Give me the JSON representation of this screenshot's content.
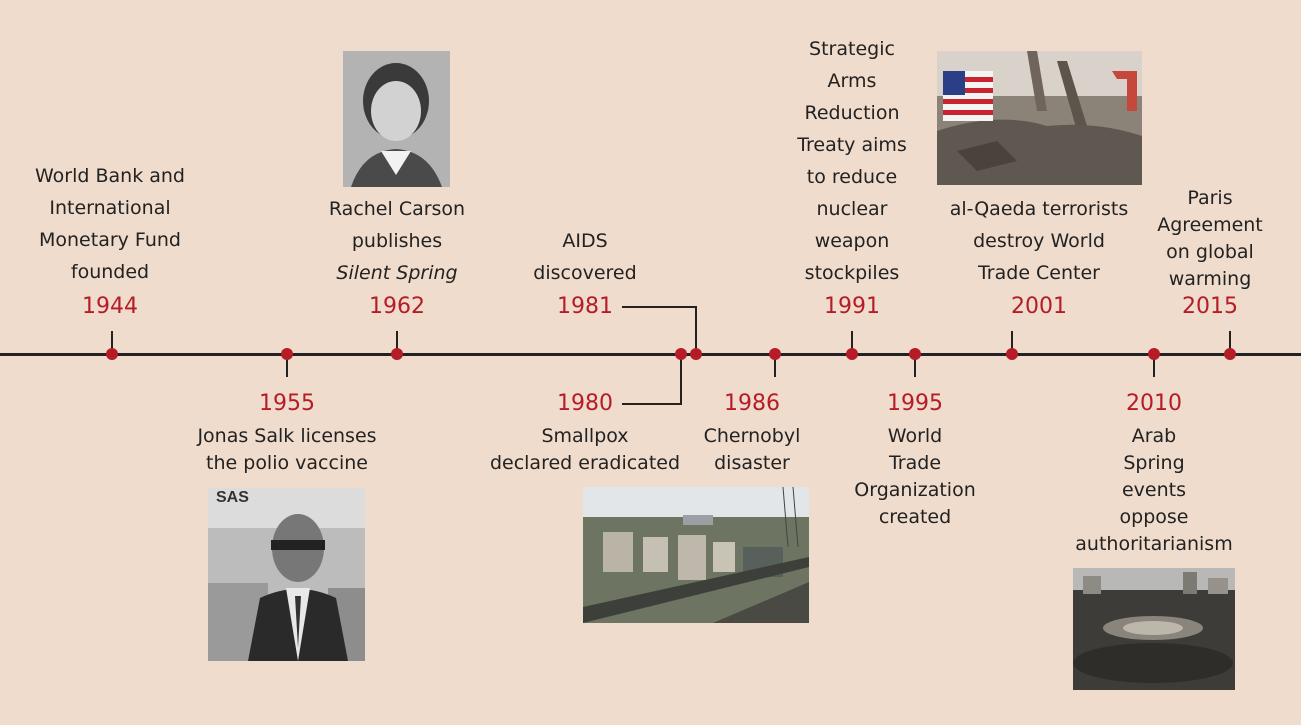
{
  "events": [
    {
      "year": "1944",
      "lines": [
        "World Bank and",
        "International",
        "Monetary Fund",
        "founded"
      ]
    },
    {
      "year": "1955",
      "lines": [
        "Jonas Salk licenses",
        "the polio vaccine"
      ]
    },
    {
      "year": "1962",
      "lines": [
        "Rachel Carson",
        "publishes",
        "Silent Spring"
      ]
    },
    {
      "year": "1980",
      "lines": [
        "Smallpox",
        "declared eradicated"
      ]
    },
    {
      "year": "1981",
      "lines": [
        "AIDS",
        "discovered"
      ]
    },
    {
      "year": "1986",
      "lines": [
        "Chernobyl",
        "disaster"
      ]
    },
    {
      "year": "1991",
      "lines": [
        "Strategic",
        "Arms",
        "Reduction",
        "Treaty aims",
        "to reduce",
        "nuclear",
        "weapon",
        "stockpiles"
      ]
    },
    {
      "year": "1995",
      "lines": [
        "World",
        "Trade",
        "Organization",
        "created"
      ]
    },
    {
      "year": "2001",
      "lines": [
        "al-Qaeda terrorists",
        "destroy World",
        "Trade Center"
      ]
    },
    {
      "year": "2010",
      "lines": [
        "Arab",
        "Spring",
        "events",
        "oppose",
        "authoritarianism"
      ]
    },
    {
      "year": "2015",
      "lines": [
        "Paris",
        "Agreement",
        "on global",
        "warming"
      ]
    }
  ],
  "colors": {
    "background": "#efdccd",
    "axis": "#222222",
    "marker": "#b51c27",
    "year_text": "#b51c27"
  },
  "photos": [
    "jonas-salk-photo",
    "rachel-carson-photo",
    "chernobyl-photo",
    "world-trade-center-photo",
    "arab-spring-photo"
  ]
}
